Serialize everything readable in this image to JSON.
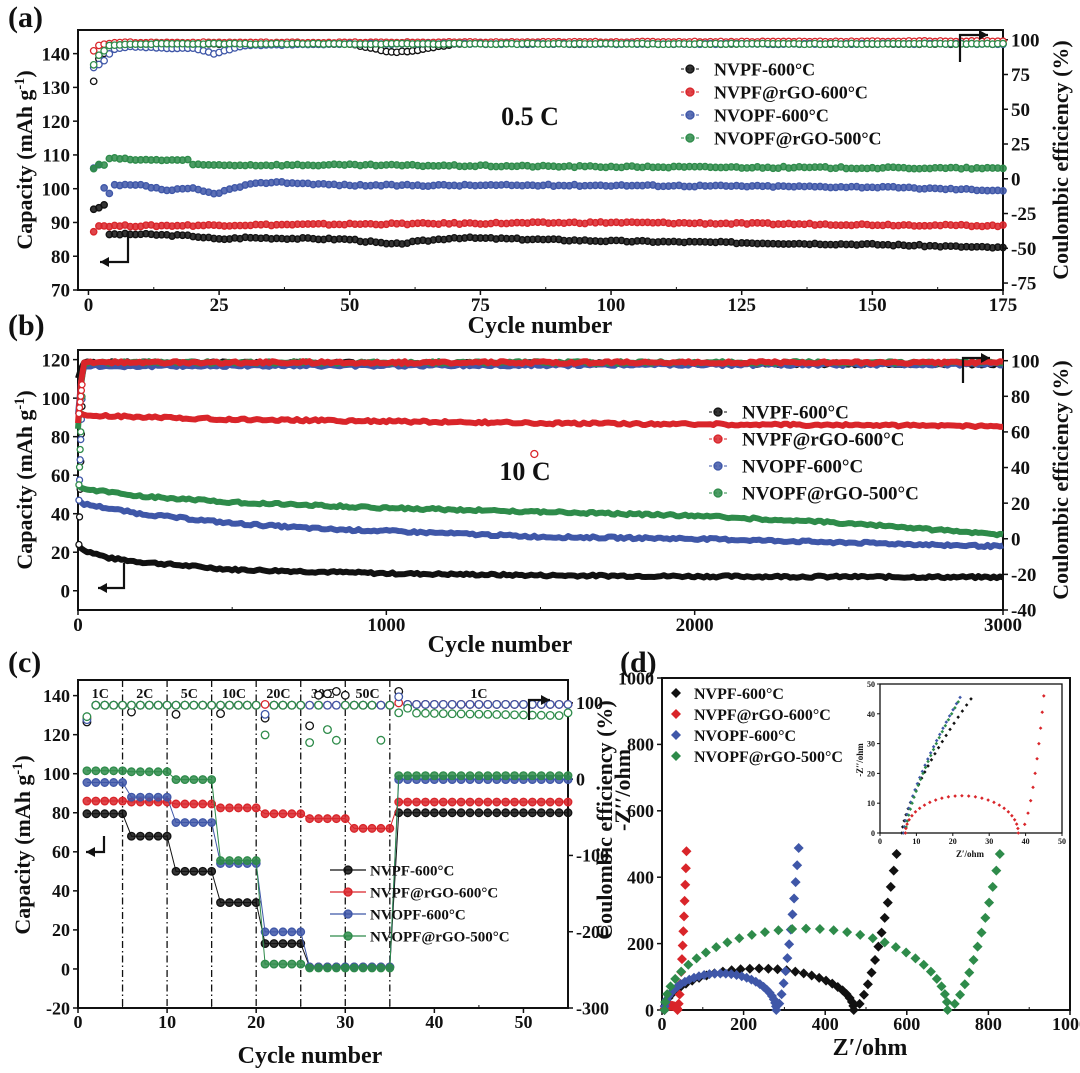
{
  "figure": {
    "series_colors": {
      "NVPF-600°C": "#111111",
      "NVPF@rGO-600°C": "#d9252a",
      "NVOPF-600°C": "#3f57a8",
      "NVOPF@rGO-500°C": "#2e8b4a"
    }
  },
  "chart_data": [
    {
      "panel": "(a)",
      "type": "scatter",
      "annotation": "0.5 C",
      "xlabel": "Cycle number",
      "ylabel": "Capacity (mAh g-1)",
      "y2label": "Coulombic efficiency (%)",
      "xlim": [
        -2,
        175
      ],
      "ylim": [
        70,
        147
      ],
      "y2lim": [
        -80,
        107
      ],
      "xticks": [
        "0",
        "25",
        "50",
        "75",
        "100",
        "125",
        "150",
        "175"
      ],
      "yticks": [
        "70",
        "80",
        "90",
        "100",
        "110",
        "120",
        "130",
        "140"
      ],
      "y2ticks": [
        "-75",
        "-50",
        "-25",
        "0",
        "25",
        "50",
        "75",
        "100"
      ],
      "legend": [
        "NVPF-600°C",
        "NVPF@rGO-600°C",
        "NVOPF-600°C",
        "NVOPF@rGO-500°C"
      ],
      "legend_position": "top-right",
      "series": [
        {
          "name": "NVPF-600°C",
          "capacity": {
            "x": [
              1,
              2,
              3,
              4,
              10,
              20,
              25,
              30,
              50,
              58,
              70,
              100,
              150,
              175
            ],
            "y": [
              94,
              94.5,
              95,
              86.5,
              86.5,
              86,
              85,
              85.5,
              85,
              83.5,
              85.5,
              84.5,
              83.5,
              82.5
            ]
          },
          "ce": {
            "x": [
              1,
              2,
              3,
              4,
              10,
              50,
              58,
              62,
              70,
              175
            ],
            "y": [
              70,
              86,
              90,
              93,
              97,
              97,
              91,
              92,
              97,
              97
            ]
          }
        },
        {
          "name": "NVPF@rGO-600°C",
          "capacity": {
            "x": [
              1,
              2,
              10,
              50,
              100,
              175
            ],
            "y": [
              87.5,
              89,
              89,
              89.5,
              90,
              89
            ]
          },
          "ce": {
            "x": [
              1,
              2,
              3,
              5,
              50,
              175
            ],
            "y": [
              92,
              96,
              97,
              98,
              98,
              99
            ]
          }
        },
        {
          "name": "NVOPF-600°C",
          "capacity": {
            "x": [
              1,
              2,
              3,
              4,
              5,
              10,
              15,
              20,
              24,
              30,
              35,
              50,
              100,
              150,
              175
            ],
            "y": [
              106,
              107,
              100,
              98.5,
              101,
              101,
              99.5,
              100,
              98.5,
              101,
              102,
              101,
              101,
              100.5,
              99.5
            ]
          },
          "ce": {
            "x": [
              1,
              2,
              3,
              4,
              5,
              8,
              15,
              20,
              24,
              30,
              50,
              175
            ],
            "y": [
              80,
              82,
              85,
              90,
              93,
              95,
              94,
              94,
              90,
              96,
              97,
              97
            ]
          }
        },
        {
          "name": "NVOPF@rGO-500°C",
          "capacity": {
            "x": [
              1,
              2,
              3,
              4,
              10,
              19,
              20,
              50,
              100,
              175
            ],
            "y": [
              106,
              107,
              107,
              109,
              108.5,
              108.5,
              107,
              107,
              106.5,
              106
            ]
          },
          "ce": {
            "x": [
              1,
              2,
              3,
              4,
              10,
              50,
              175
            ],
            "y": [
              82,
              89,
              92,
              96,
              97,
              97,
              97
            ]
          }
        }
      ]
    },
    {
      "panel": "(b)",
      "type": "line",
      "annotation": "10 C",
      "xlabel": "Cycle number",
      "ylabel": "Capacity (mAh g-1)",
      "y2label": "Coulombic efficiency (%)",
      "xlim": [
        0,
        3000
      ],
      "ylim": [
        -10,
        125
      ],
      "y2lim": [
        -40,
        106
      ],
      "xticks": [
        "0",
        "1000",
        "2000",
        "3000"
      ],
      "yticks": [
        "0",
        "20",
        "40",
        "60",
        "80",
        "100",
        "120"
      ],
      "y2ticks": [
        "-40",
        "-20",
        "0",
        "20",
        "40",
        "60",
        "80",
        "100"
      ],
      "legend": [
        "NVPF-600°C",
        "NVPF@rGO-600°C",
        "NVOPF-600°C",
        "NVOPF@rGO-500°C"
      ],
      "legend_position": "center-right",
      "outlier": {
        "series": "NVPF@rGO-600°C",
        "x": 1480,
        "y": 71
      },
      "series": [
        {
          "name": "NVPF-600°C",
          "capacity": {
            "x": [
              0,
              20,
              100,
              200,
              500,
              1000,
              1500,
              2000,
              3000
            ],
            "y": [
              24,
              21,
              17,
              15,
              11,
              9,
              8,
              7.5,
              7
            ]
          },
          "ce": {
            "x": [
              0,
              15,
              3000
            ],
            "y": [
              90,
              99,
              98
            ]
          }
        },
        {
          "name": "NVPF@rGO-600°C",
          "capacity": {
            "x": [
              0,
              20,
              500,
              1000,
              1500,
              2000,
              3000
            ],
            "y": [
              92,
              91,
              89,
              88,
              87,
              86.5,
              85.5
            ]
          },
          "ce": {
            "x": [
              0,
              15,
              3000
            ],
            "y": [
              65,
              99,
              99
            ]
          }
        },
        {
          "name": "NVOPF-600°C",
          "capacity": {
            "x": [
              0,
              20,
              200,
              500,
              800,
              1000,
              1500,
              2000,
              2500,
              3000
            ],
            "y": [
              47,
              45,
              40,
              35,
              32,
              31,
              28,
              27,
              25,
              23
            ]
          },
          "ce": {
            "x": [
              0,
              15,
              3000
            ],
            "y": [
              70,
              97,
              98
            ]
          }
        },
        {
          "name": "NVOPF@rGO-500°C",
          "capacity": {
            "x": [
              0,
              20,
              200,
              500,
              1000,
              1500,
              2000,
              2500,
              3000
            ],
            "y": [
              55,
              53,
              49,
              46,
              43,
              41,
              39,
              35,
              29
            ]
          },
          "ce": {
            "x": [
              0,
              15,
              3000
            ],
            "y": [
              62,
              99,
              99
            ]
          }
        }
      ]
    },
    {
      "panel": "(c)",
      "type": "scatter",
      "xlabel": "Cycle number",
      "ylabel": "Capacity (mAh g-1)",
      "y2label": "Coulombic efficiency (%)",
      "xlim": [
        0,
        55
      ],
      "ylim": [
        -20,
        148
      ],
      "y2lim": [
        -300,
        130
      ],
      "xticks": [
        "0",
        "10",
        "20",
        "30",
        "40",
        "50"
      ],
      "yticks": [
        "-20",
        "0",
        "20",
        "40",
        "60",
        "80",
        "100",
        "120",
        "140"
      ],
      "y2ticks": [
        "-300",
        "-200",
        "-100",
        "0",
        "100"
      ],
      "rate_labels": [
        "1C",
        "2C",
        "5C",
        "10C",
        "20C",
        "30C",
        "50C",
        "1C"
      ],
      "rate_boundaries": [
        5,
        10,
        15,
        20,
        25,
        30,
        35
      ],
      "legend": [
        "NVPF-600°C",
        "NVPF@rGO-600°C",
        "NVOPF-600°C",
        "NVOPF@rGO-500°C"
      ],
      "legend_position": "center-right",
      "series": [
        {
          "name": "NVPF-600°C",
          "capacity_steps": [
            79.5,
            68,
            50,
            34,
            13,
            1,
            1,
            80
          ],
          "ce_x": [
            1,
            6,
            11,
            16,
            21,
            26,
            27,
            28,
            29,
            30,
            36
          ],
          "ce_y": [
            75,
            88,
            85,
            86,
            80,
            70,
            110,
            112,
            115,
            110,
            115
          ]
        },
        {
          "name": "NVPF@rGO-600°C",
          "capacity_steps": [
            86,
            85.5,
            84.5,
            82.5,
            79.5,
            77,
            72,
            85.5
          ],
          "ce_x": [
            1,
            21,
            31,
            36
          ],
          "ce_y": [
            80,
            98,
            97,
            100
          ]
        },
        {
          "name": "NVOPF-600°C",
          "capacity_steps": [
            95.5,
            88,
            75,
            54,
            19,
            1,
            1,
            97
          ],
          "ce_x": [
            1,
            21,
            36
          ],
          "ce_y": [
            78,
            85,
            108
          ]
        },
        {
          "name": "NVOPF@rGO-500°C",
          "capacity_steps": [
            101.5,
            101,
            97,
            55.5,
            2.5,
            0.5,
            0.5,
            99
          ],
          "ce_x": [
            1,
            21,
            26,
            28,
            29,
            34,
            37,
            55
          ],
          "ce_y": [
            82,
            58,
            48,
            65,
            51,
            51,
            93,
            87
          ]
        }
      ]
    },
    {
      "panel": "(d)",
      "type": "scatter",
      "xlabel": "Z′/ohm",
      "ylabel": "-Z′′/ohm",
      "xlim": [
        0,
        1000
      ],
      "ylim": [
        0,
        1000
      ],
      "xticks": [
        "0",
        "200",
        "400",
        "600",
        "800",
        "1000"
      ],
      "yticks": [
        "0",
        "200",
        "400",
        "600",
        "800",
        "1000"
      ],
      "legend": [
        "NVPF-600°C",
        "NVPF@rGO-600°C",
        "NVOPF-600°C",
        "NVOPF@rGO-500°C"
      ],
      "legend_position": "top-left",
      "series": [
        {
          "name": "NVPF-600°C",
          "arc": {
            "r0": 6,
            "r1": 470,
            "peak": 125
          },
          "tail_end": [
            575,
            470
          ]
        },
        {
          "name": "NVPF@rGO-600°C",
          "arc": {
            "r0": 6,
            "r1": 38,
            "peak": 12.5
          },
          "tail_end": [
            60,
            478
          ]
        },
        {
          "name": "NVOPF-600°C",
          "arc": {
            "r0": 6,
            "r1": 280,
            "peak": 110
          },
          "tail_end": [
            335,
            488
          ]
        },
        {
          "name": "NVOPF@rGO-500°C",
          "arc": {
            "r0": 6,
            "r1": 700,
            "peak": 245
          },
          "tail_end": [
            828,
            470
          ]
        }
      ],
      "inset": {
        "xlabel": "Z′/ohm",
        "ylabel": "-Z′′/ohm",
        "xlim": [
          0,
          50
        ],
        "ylim": [
          0,
          50
        ],
        "xticks": [
          "0",
          "10",
          "20",
          "30",
          "40",
          "50"
        ],
        "yticks": [
          "0",
          "10",
          "20",
          "30",
          "40",
          "50"
        ]
      }
    }
  ]
}
